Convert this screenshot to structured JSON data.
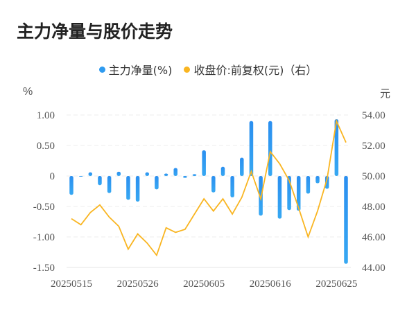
{
  "title": "主力净量与股价走势",
  "legend": [
    {
      "label": "主力净量(%)",
      "color": "#2e9bf0"
    },
    {
      "label": "收盘价:前复权(元)（右）",
      "color": "#f9b521"
    }
  ],
  "axis": {
    "left_unit": "%",
    "right_unit": "元",
    "left_ticks": [
      "1.00",
      "0.50",
      "0",
      "-0.50",
      "-1.00",
      "-1.50"
    ],
    "right_ticks": [
      "54.00",
      "52.00",
      "50.00",
      "48.00",
      "46.00",
      "44.00"
    ],
    "x_ticks": [
      "20250515",
      "20250526",
      "20250605",
      "20250616",
      "20250625"
    ]
  },
  "chart_data": {
    "type": "bar+line",
    "title": "主力净量与股价走势",
    "xlabel": "",
    "ylabel": "%",
    "ylabel_right": "元",
    "ylim": [
      -1.5,
      1.0
    ],
    "ylim_right": [
      44.0,
      54.0
    ],
    "grid": true,
    "legend_position": "top",
    "x": [
      "20250515",
      "20250516",
      "20250519",
      "20250520",
      "20250521",
      "20250522",
      "20250523",
      "20250526",
      "20250527",
      "20250528",
      "20250529",
      "20250530",
      "20250603",
      "20250604",
      "20250605",
      "20250606",
      "20250609",
      "20250610",
      "20250611",
      "20250612",
      "20250613",
      "20250616",
      "20250617",
      "20250618",
      "20250619",
      "20250620",
      "20250623",
      "20250624",
      "20250625",
      "20250626"
    ],
    "x_tick_labels": [
      "20250515",
      "20250526",
      "20250605",
      "20250616",
      "20250625"
    ],
    "series": [
      {
        "name": "主力净量(%)",
        "type": "bar",
        "axis": "left",
        "color": "#2e9bf0",
        "values": [
          -0.31,
          -0.01,
          0.06,
          -0.15,
          -0.28,
          0.07,
          -0.39,
          -0.42,
          0.06,
          -0.22,
          0.04,
          0.13,
          -0.03,
          0.03,
          0.42,
          -0.27,
          0.15,
          -0.35,
          0.3,
          0.9,
          -0.65,
          0.9,
          -0.7,
          -0.56,
          -0.57,
          -0.29,
          -0.12,
          -0.21,
          0.93,
          -1.44
        ]
      },
      {
        "name": "收盘价:前复权(元)（右）",
        "type": "line",
        "axis": "right",
        "color": "#f9b521",
        "values": [
          47.2,
          46.8,
          47.6,
          48.1,
          47.3,
          46.7,
          45.2,
          46.2,
          45.6,
          44.8,
          46.6,
          46.3,
          46.5,
          47.5,
          48.5,
          47.7,
          48.5,
          47.5,
          48.6,
          50.3,
          48.5,
          51.6,
          50.8,
          49.7,
          47.9,
          46.0,
          47.7,
          49.8,
          53.6,
          52.2
        ]
      }
    ]
  }
}
